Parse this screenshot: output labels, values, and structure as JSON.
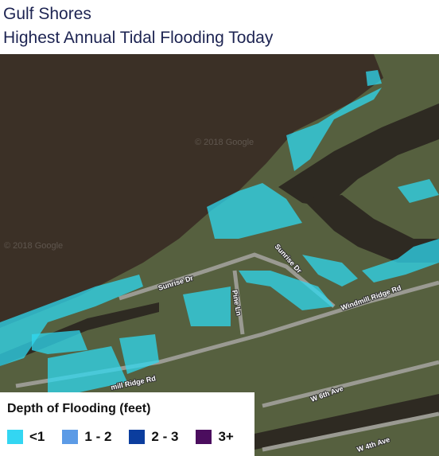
{
  "header": {
    "title": [
      "Gulf Shores",
      "Highest Annual Tidal Flooding Today"
    ]
  },
  "map": {
    "watermarks": [
      "© 2018 Google",
      "© 2018 Google"
    ],
    "streets": [
      "Sunrise Dr",
      "Sunrise Dr",
      "Pine Ln",
      "Windmill Ridge Rd",
      "mill Ridge Rd",
      "W 6th Ave",
      "W 4th Ave"
    ]
  },
  "legend": {
    "title": "Depth of Flooding (feet)",
    "items": [
      {
        "label": "<1",
        "color": "#33d6f2"
      },
      {
        "label": "1 - 2",
        "color": "#5c9be6"
      },
      {
        "label": "2 - 3",
        "color": "#0b3d9e"
      },
      {
        "label": "3+",
        "color": "#4b0d5e"
      }
    ]
  }
}
